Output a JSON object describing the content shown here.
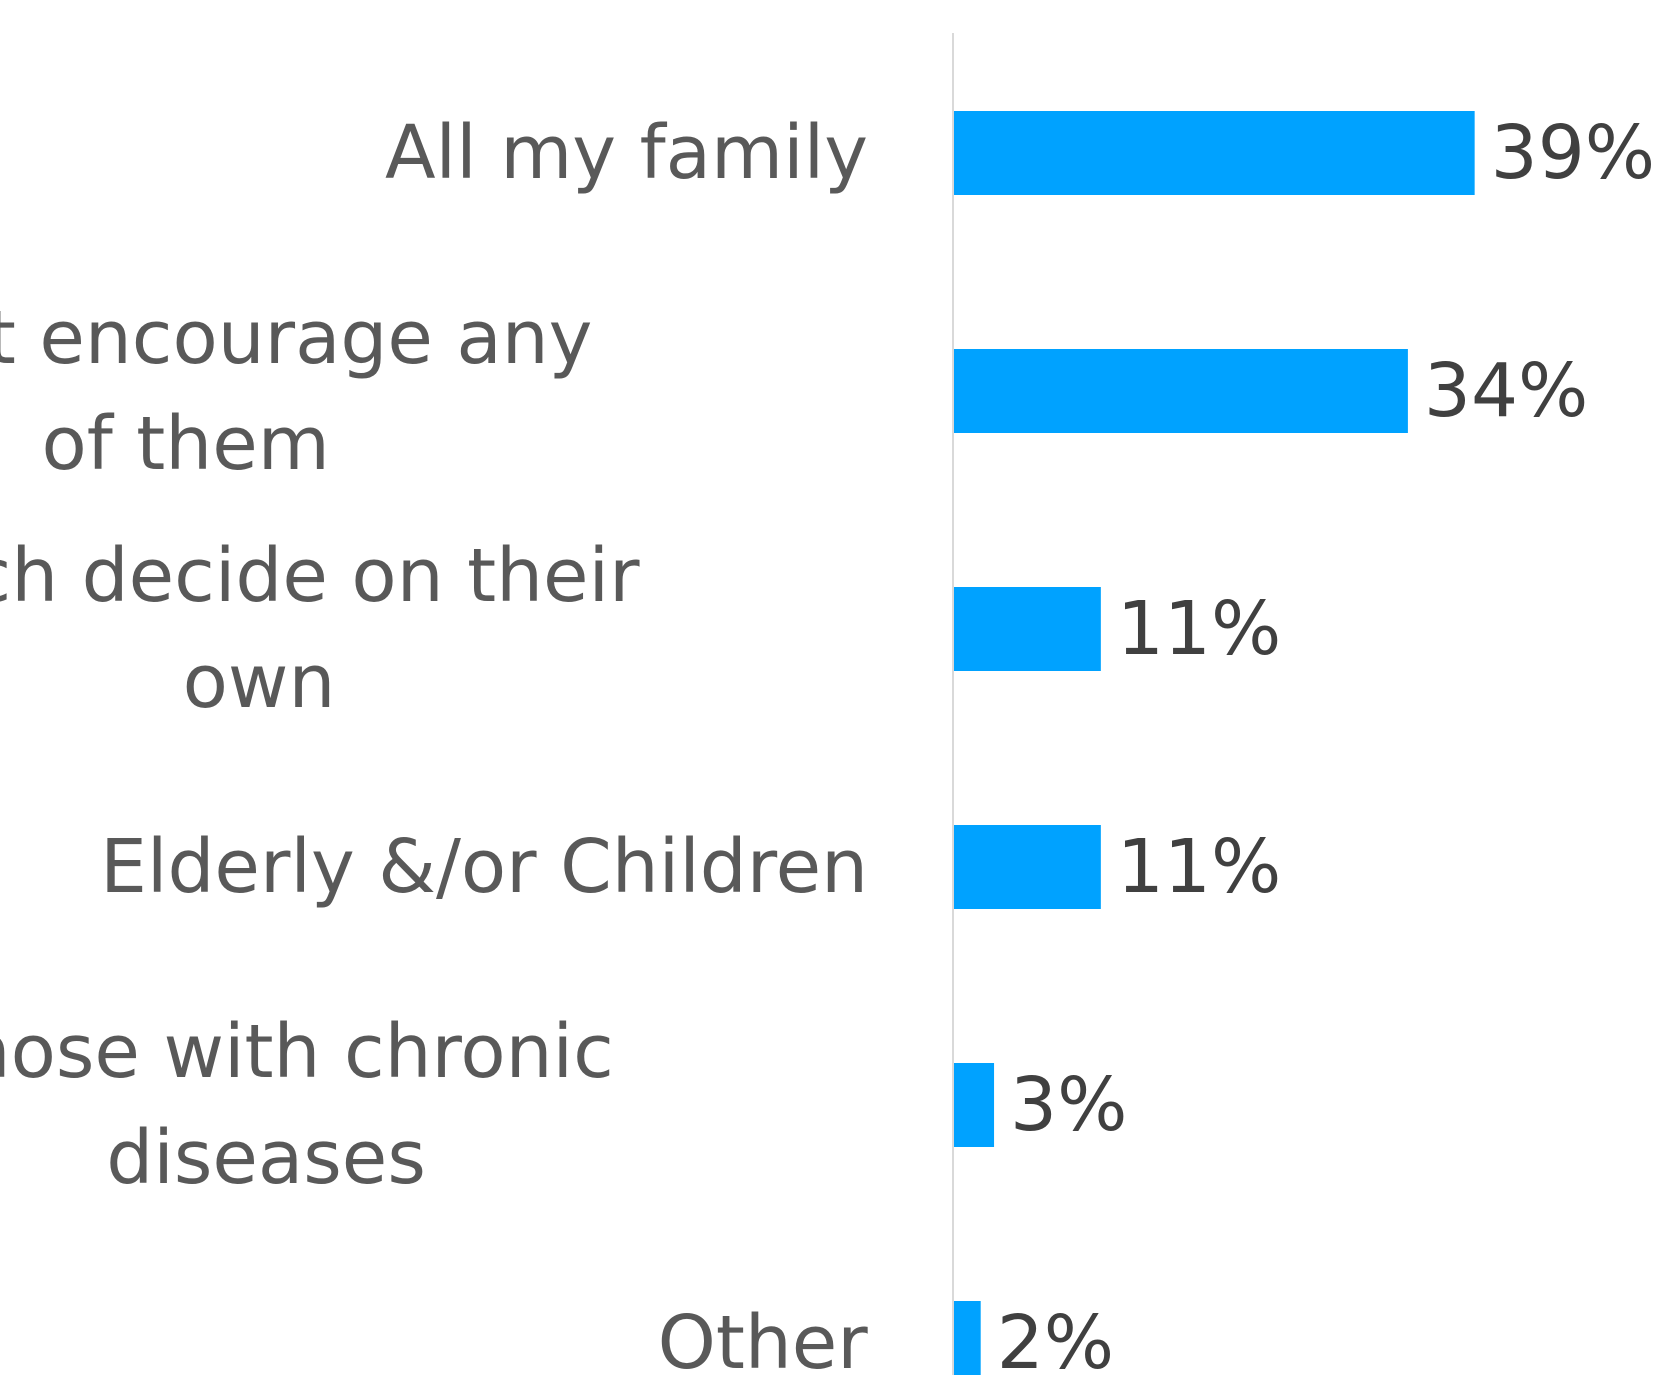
{
  "chart_data": {
    "type": "bar",
    "orientation": "horizontal",
    "categories": [
      "All my family",
      "I don’t encourage any of them",
      "Each decide on their own",
      "Elderly &/or Children",
      "Those with chronic diseases",
      "Other"
    ],
    "category_lines": [
      [
        "All my family"
      ],
      [
        "I don’t encourage any",
        "of them"
      ],
      [
        "Each decide on their",
        "own"
      ],
      [
        "Elderly &/or Children"
      ],
      [
        "Those with chronic",
        "diseases"
      ],
      [
        "Other"
      ]
    ],
    "values": [
      39,
      34,
      11,
      11,
      3,
      2
    ],
    "value_labels": [
      "39%",
      "34%",
      "11%",
      "11%",
      "3%",
      "2%"
    ],
    "xlim": [
      0,
      100
    ],
    "grid": false,
    "legend": "none",
    "bar_color": "#00a2ff",
    "axis_color": "#d9d9d9"
  }
}
